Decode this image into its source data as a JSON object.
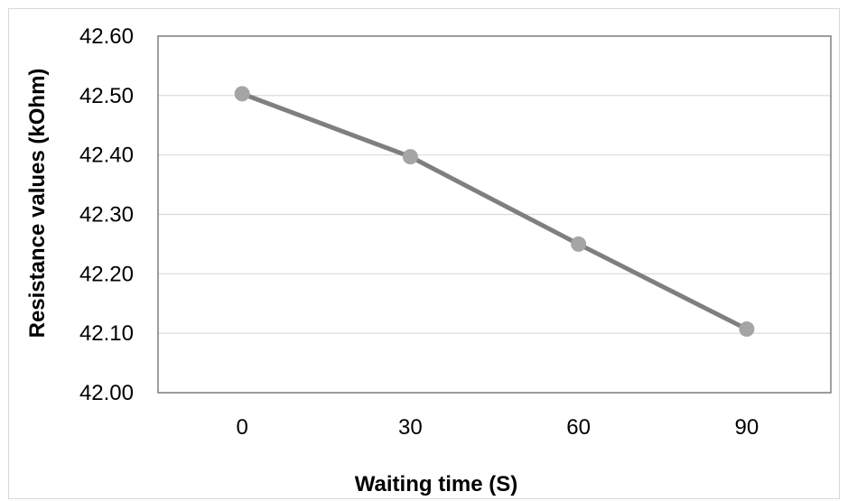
{
  "chart_data": {
    "type": "line",
    "title": "",
    "xlabel": "Waiting time (S)",
    "ylabel": "Resistance values (kOhm)",
    "categories": [
      "0",
      "30",
      "60",
      "90"
    ],
    "series": [
      {
        "values": [
          42.503,
          42.397,
          42.25,
          42.107
        ]
      }
    ],
    "ylim": [
      42.0,
      42.6
    ],
    "yticks": [
      "42.00",
      "42.10",
      "42.20",
      "42.30",
      "42.40",
      "42.50",
      "42.60"
    ],
    "grid": true,
    "legend": "none",
    "colors": {
      "line": "#7f7f7f",
      "marker": "#a5a5a5",
      "grid": "#d9d9d9",
      "frame": "#7f7f7f"
    }
  }
}
